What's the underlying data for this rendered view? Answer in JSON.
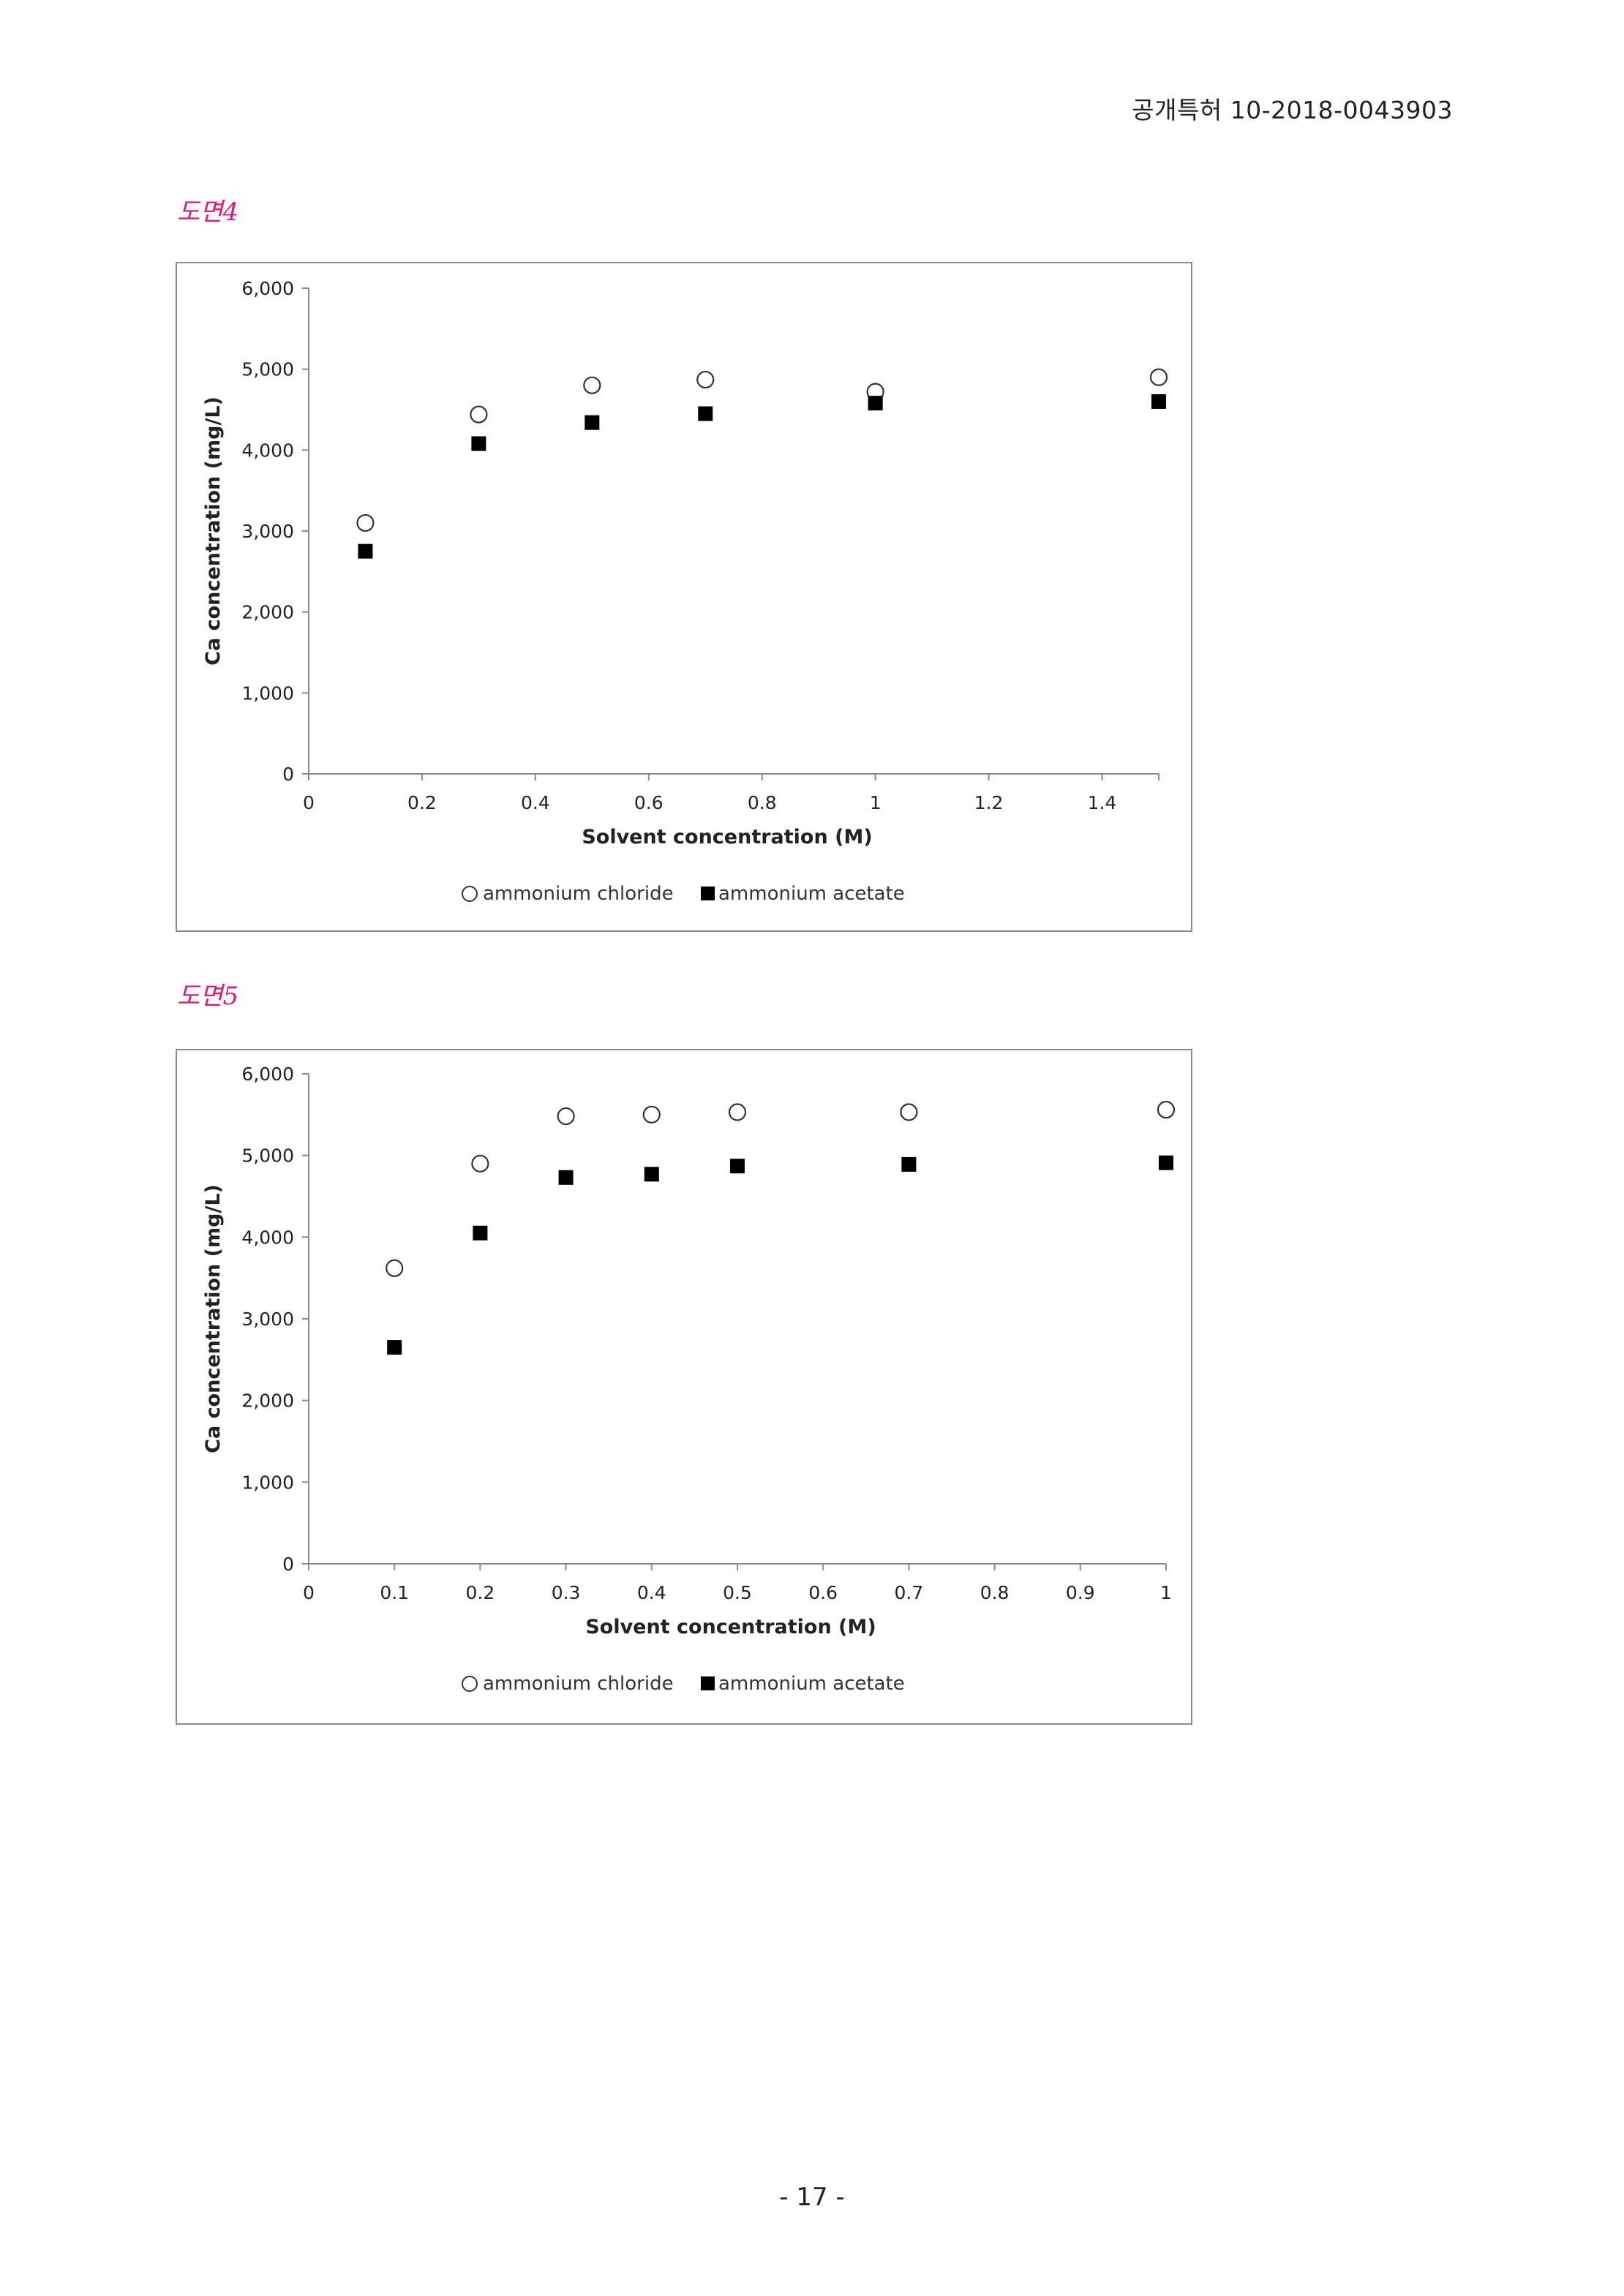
{
  "header": {
    "patent_number": "공개특허 10-2018-0043903"
  },
  "figures": [
    {
      "label": "도면4"
    },
    {
      "label": "도면5"
    }
  ],
  "footer": {
    "page": "- 17 -"
  },
  "chart_data": [
    {
      "type": "scatter",
      "title": "",
      "xlabel": "Solvent concentration (M)",
      "ylabel": "Ca concentration (mg/L)",
      "xlim": [
        0,
        1.5
      ],
      "ylim": [
        0,
        6000
      ],
      "xticks": [
        0,
        0.2,
        0.4,
        0.6,
        0.8,
        1,
        1.2,
        1.4
      ],
      "xtick_labels": [
        "0",
        "0.2",
        "0.4",
        "0.6",
        "0.8",
        "1",
        "1.2",
        "1.4"
      ],
      "yticks": [
        0,
        1000,
        2000,
        3000,
        4000,
        5000,
        6000
      ],
      "ytick_labels": [
        "0",
        "1,000",
        "2,000",
        "3,000",
        "4,000",
        "5,000",
        "6,000"
      ],
      "grid": false,
      "legend_position": "bottom",
      "series": [
        {
          "name": "ammonium chloride",
          "marker": "open-circle",
          "x": [
            0.1,
            0.3,
            0.5,
            0.7,
            1.0,
            1.5
          ],
          "y": [
            3100,
            4440,
            4800,
            4870,
            4720,
            4900
          ]
        },
        {
          "name": "ammonium acetate",
          "marker": "filled-square",
          "x": [
            0.1,
            0.3,
            0.5,
            0.7,
            1.0,
            1.5
          ],
          "y": [
            2750,
            4080,
            4340,
            4450,
            4580,
            4600
          ]
        }
      ]
    },
    {
      "type": "scatter",
      "title": "",
      "xlabel": "Solvent concentration (M)",
      "ylabel": "Ca concentration (mg/L)",
      "xlim": [
        0,
        1
      ],
      "ylim": [
        0,
        6000
      ],
      "xticks": [
        0,
        0.1,
        0.2,
        0.3,
        0.4,
        0.5,
        0.6,
        0.7,
        0.8,
        0.9,
        1
      ],
      "xtick_labels": [
        "0",
        "0.1",
        "0.2",
        "0.3",
        "0.4",
        "0.5",
        "0.6",
        "0.7",
        "0.8",
        "0.9",
        "1"
      ],
      "yticks": [
        0,
        1000,
        2000,
        3000,
        4000,
        5000,
        6000
      ],
      "ytick_labels": [
        "0",
        "1,000",
        "2,000",
        "3,000",
        "4,000",
        "5,000",
        "6,000"
      ],
      "grid": false,
      "legend_position": "bottom",
      "series": [
        {
          "name": "ammonium chloride",
          "marker": "open-circle",
          "x": [
            0.1,
            0.2,
            0.3,
            0.4,
            0.5,
            0.7,
            1.0
          ],
          "y": [
            3620,
            4900,
            5480,
            5500,
            5530,
            5530,
            5560
          ]
        },
        {
          "name": "ammonium acetate",
          "marker": "filled-square",
          "x": [
            0.1,
            0.2,
            0.3,
            0.4,
            0.5,
            0.7,
            1.0
          ],
          "y": [
            2650,
            4050,
            4730,
            4770,
            4870,
            4890,
            4910
          ]
        }
      ]
    }
  ]
}
